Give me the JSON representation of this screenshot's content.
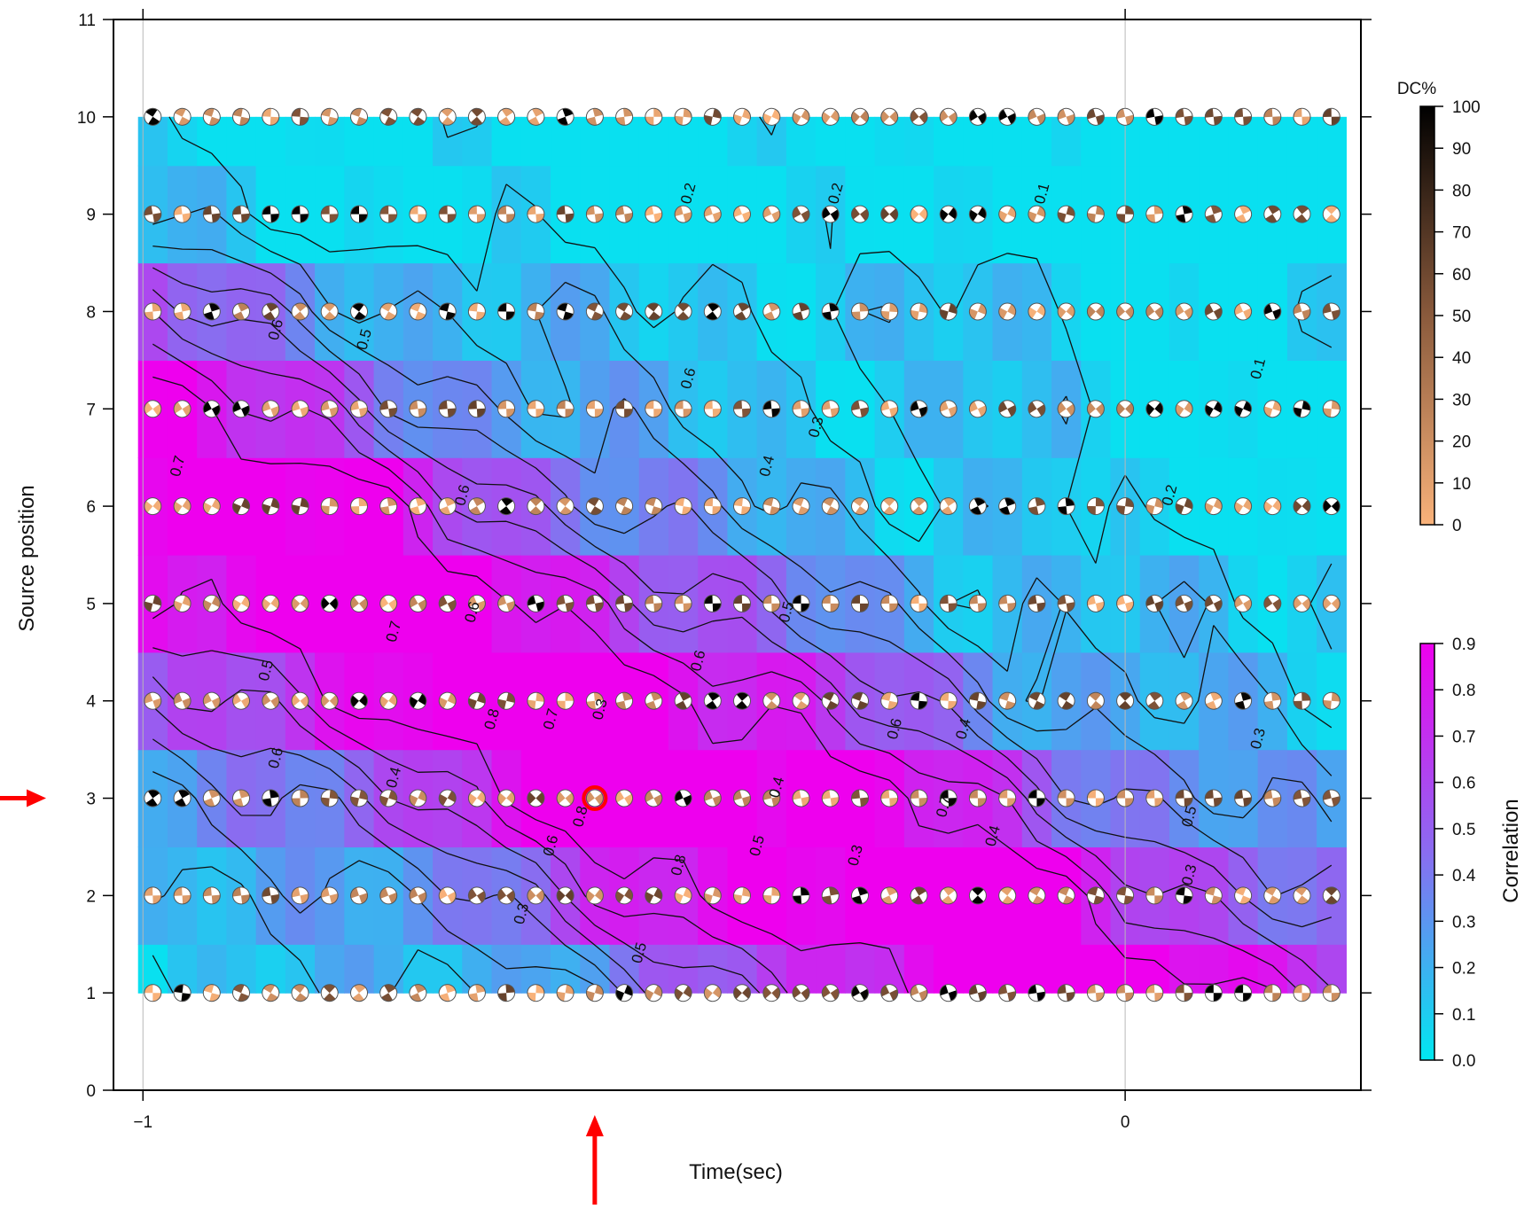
{
  "chart_data": {
    "type": "heatmap",
    "xlabel": "Time(sec)",
    "ylabel": "Source position",
    "x_ticks": [
      "-1",
      "0"
    ],
    "x_tick_values": [
      -1,
      0
    ],
    "y_ticks": [
      "0",
      "1",
      "2",
      "3",
      "4",
      "5",
      "6",
      "7",
      "8",
      "9",
      "10",
      "11"
    ],
    "xlim": [
      -1.03,
      0.24
    ],
    "ylim": [
      0,
      11
    ],
    "grid": "x only at -1 and 0",
    "x": [
      -0.99,
      -0.96,
      -0.93,
      -0.9,
      -0.87,
      -0.84,
      -0.81,
      -0.78,
      -0.75,
      -0.72,
      -0.69,
      -0.66,
      -0.63,
      -0.6,
      -0.57,
      -0.54,
      -0.51,
      -0.48,
      -0.45,
      -0.42,
      -0.39,
      -0.36,
      -0.33,
      -0.3,
      -0.27,
      -0.24,
      -0.21,
      -0.18,
      -0.15,
      -0.12,
      -0.09,
      -0.06,
      -0.03,
      0.0,
      0.03,
      0.06,
      0.09,
      0.12,
      0.15,
      0.18,
      0.21
    ],
    "y": [
      1,
      2,
      3,
      4,
      5,
      6,
      7,
      8,
      9,
      10
    ],
    "correlation_colorbar": {
      "label": "Correlation",
      "ticks": [
        "0.0",
        "0.1",
        "0.2",
        "0.3",
        "0.4",
        "0.5",
        "0.6",
        "0.7",
        "0.8",
        "0.9"
      ],
      "range": [
        0.0,
        0.9
      ],
      "colors": [
        "#00e8f0",
        "#8a6cf0",
        "#ee00ee"
      ]
    },
    "dc_colorbar": {
      "label": "DC%",
      "ticks": [
        "0",
        "10",
        "20",
        "30",
        "40",
        "50",
        "60",
        "70",
        "80",
        "90",
        "100"
      ],
      "range": [
        0,
        100
      ],
      "colors": [
        "#f9b27a",
        "#8a5a3c",
        "#000000"
      ]
    },
    "contour_levels": [
      0.1,
      0.2,
      0.3,
      0.4,
      0.5,
      0.6,
      0.7,
      0.8
    ],
    "contour_labels": [
      {
        "text": "0.7",
        "x": -0.96,
        "y": 6.4
      },
      {
        "text": "0.6",
        "x": -0.86,
        "y": 7.8
      },
      {
        "text": "0.5",
        "x": -0.77,
        "y": 7.7
      },
      {
        "text": "0.5",
        "x": -0.87,
        "y": 4.3
      },
      {
        "text": "0.6",
        "x": -0.86,
        "y": 3.4
      },
      {
        "text": "0.4",
        "x": -0.74,
        "y": 3.2
      },
      {
        "text": "0.7",
        "x": -0.74,
        "y": 4.7
      },
      {
        "text": "0.6",
        "x": -0.66,
        "y": 4.9
      },
      {
        "text": "0.8",
        "x": -0.64,
        "y": 3.8
      },
      {
        "text": "0.7",
        "x": -0.58,
        "y": 3.8
      },
      {
        "text": "0.3",
        "x": -0.53,
        "y": 3.9
      },
      {
        "text": "0.8",
        "x": -0.55,
        "y": 2.8
      },
      {
        "text": "0.6",
        "x": -0.58,
        "y": 2.5
      },
      {
        "text": "0.3",
        "x": -0.61,
        "y": 1.8
      },
      {
        "text": "0.5",
        "x": -0.49,
        "y": 1.4
      },
      {
        "text": "0.8",
        "x": -0.45,
        "y": 2.3
      },
      {
        "text": "0.6",
        "x": -0.43,
        "y": 4.4
      },
      {
        "text": "0.5",
        "x": -0.37,
        "y": 2.5
      },
      {
        "text": "0.3",
        "x": -0.27,
        "y": 2.4
      },
      {
        "text": "0.4",
        "x": -0.35,
        "y": 3.1
      },
      {
        "text": "0.5",
        "x": -0.34,
        "y": 4.9
      },
      {
        "text": "0.4",
        "x": -0.36,
        "y": 6.4
      },
      {
        "text": "0.3",
        "x": -0.31,
        "y": 6.8
      },
      {
        "text": "0.2",
        "x": -0.44,
        "y": 9.2
      },
      {
        "text": "0.2",
        "x": -0.29,
        "y": 9.2
      },
      {
        "text": "0.1",
        "x": -0.08,
        "y": 9.2
      },
      {
        "text": "0.1",
        "x": 0.14,
        "y": 7.4
      },
      {
        "text": "0.2",
        "x": 0.05,
        "y": 6.1
      },
      {
        "text": "0.6",
        "x": -0.23,
        "y": 3.7
      },
      {
        "text": "0.4",
        "x": -0.16,
        "y": 3.7
      },
      {
        "text": "0.7",
        "x": -0.18,
        "y": 2.9
      },
      {
        "text": "0.4",
        "x": -0.13,
        "y": 2.6
      },
      {
        "text": "0.5",
        "x": 0.07,
        "y": 2.8
      },
      {
        "text": "0.3",
        "x": 0.07,
        "y": 2.2
      },
      {
        "text": "0.3",
        "x": 0.14,
        "y": 3.6
      },
      {
        "text": "0.6",
        "x": -0.44,
        "y": 7.3
      },
      {
        "text": "0.6",
        "x": -0.67,
        "y": 6.1
      }
    ],
    "best_solution": {
      "x": -0.54,
      "y": 3
    },
    "annotation_arrows": [
      {
        "points_to": "y",
        "value": 3
      },
      {
        "points_to": "x",
        "value": -0.54
      }
    ],
    "marker": "focal-mechanism beachballs at every grid node, shaded by DC%"
  }
}
